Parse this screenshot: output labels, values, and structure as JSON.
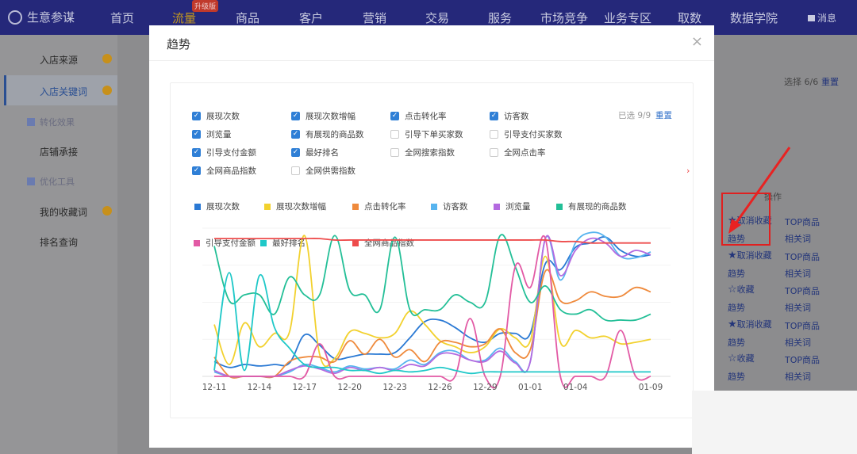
{
  "nav": {
    "brand": "生意参谋",
    "items": [
      "首页",
      "流量",
      "商品",
      "客户",
      "营销",
      "交易",
      "服务",
      "市场竞争",
      "业务专区",
      "取数",
      "数据学院"
    ],
    "active": "流量",
    "badge": "升级版",
    "message": "消息"
  },
  "sidebar": {
    "items": [
      {
        "label": "入店来源",
        "dot": true
      },
      {
        "label": "入店关键词",
        "dot": true,
        "selected": true
      }
    ],
    "group1": "转化效果",
    "item3": "店铺承接",
    "group2": "优化工具",
    "item4": "我的收藏词",
    "item5": "排名查询"
  },
  "right": {
    "select_text": "选择 6/6",
    "reset": "重置",
    "op_header": "操作",
    "rows": [
      {
        "fav": "取消收藏",
        "star": "filled",
        "top": "TOP商品",
        "trend": "趋势",
        "rel": "相关词"
      },
      {
        "fav": "取消收藏",
        "star": "filled",
        "top": "TOP商品",
        "trend": "趋势",
        "rel": "相关词"
      },
      {
        "fav": "收藏",
        "star": "outline",
        "top": "TOP商品",
        "trend": "趋势",
        "rel": "相关词"
      },
      {
        "fav": "取消收藏",
        "star": "filled",
        "top": "TOP商品",
        "trend": "趋势",
        "rel": "相关词"
      },
      {
        "fav": "收藏",
        "star": "outline",
        "top": "TOP商品",
        "trend": "趋势",
        "rel": "相关词"
      }
    ]
  },
  "modal": {
    "title": "趋势",
    "close": "×",
    "selected_count": "已选 9/9",
    "reset": "重置",
    "metrics": [
      {
        "label": "展现次数",
        "checked": true
      },
      {
        "label": "展现次数增幅",
        "checked": true
      },
      {
        "label": "点击转化率",
        "checked": true
      },
      {
        "label": "访客数",
        "checked": true
      },
      {
        "label": "浏览量",
        "checked": true
      },
      {
        "label": "有展现的商品数",
        "checked": true
      },
      {
        "label": "引导下单买家数",
        "checked": false
      },
      {
        "label": "引导支付买家数",
        "checked": false
      },
      {
        "label": "引导支付金额",
        "checked": true
      },
      {
        "label": "最好排名",
        "checked": true
      },
      {
        "label": "全网搜索指数",
        "checked": false
      },
      {
        "label": "全网点击率",
        "checked": false
      },
      {
        "label": "全网商品指数",
        "checked": true
      },
      {
        "label": "全网供需指数",
        "checked": false
      }
    ]
  },
  "chart_data": {
    "type": "line",
    "smooth": true,
    "legend_position": "top",
    "grid": true,
    "ylim": [
      0,
      100
    ],
    "categories": [
      "12-11",
      "12-12",
      "12-13",
      "12-14",
      "12-15",
      "12-16",
      "12-17",
      "12-18",
      "12-19",
      "12-20",
      "12-21",
      "12-22",
      "12-23",
      "12-24",
      "12-25",
      "12-26",
      "12-27",
      "12-28",
      "12-29",
      "12-30",
      "12-31",
      "01-01",
      "01-02",
      "01-03",
      "01-04",
      "01-05",
      "01-06",
      "01-07",
      "01-08",
      "01-09"
    ],
    "tick_labels": [
      "12-11",
      "12-14",
      "12-17",
      "12-20",
      "12-23",
      "12-26",
      "12-29",
      "01-01",
      "01-04",
      "01-09"
    ],
    "series": [
      {
        "name": "展现次数",
        "color": "#2a79d4",
        "values": [
          10,
          6,
          8,
          7,
          8,
          9,
          28,
          21,
          12,
          13,
          15,
          15,
          16,
          26,
          37,
          38,
          33,
          26,
          23,
          29,
          29,
          29,
          76,
          72,
          87,
          90,
          94,
          85,
          81,
          82
        ]
      },
      {
        "name": "展现次数增幅",
        "color": "#f2d12e",
        "values": [
          35,
          8,
          36,
          20,
          29,
          30,
          95,
          15,
          12,
          30,
          29,
          26,
          29,
          44,
          35,
          24,
          20,
          16,
          20,
          32,
          26,
          24,
          81,
          23,
          31,
          26,
          27,
          22,
          23,
          25
        ]
      },
      {
        "name": "点击转化率",
        "color": "#ef8a3c",
        "values": [
          13,
          0,
          0,
          0,
          0,
          10,
          13,
          13,
          10,
          24,
          15,
          25,
          13,
          18,
          10,
          23,
          23,
          20,
          22,
          32,
          16,
          18,
          71,
          51,
          51,
          57,
          54,
          54,
          60,
          57
        ]
      },
      {
        "name": "访客数",
        "color": "#57b4ef",
        "values": [
          3,
          0,
          0,
          0,
          0,
          3,
          8,
          6,
          3,
          7,
          5,
          6,
          5,
          11,
          8,
          16,
          17,
          11,
          11,
          19,
          10,
          10,
          93,
          65,
          90,
          97,
          94,
          81,
          80,
          84
        ]
      },
      {
        "name": "浏览量",
        "color": "#b46ae0",
        "values": [
          4,
          0,
          0,
          0,
          0,
          4,
          7,
          5,
          2,
          6,
          4,
          6,
          4,
          8,
          7,
          15,
          15,
          11,
          10,
          17,
          9,
          10,
          93,
          68,
          85,
          93,
          90,
          81,
          85,
          82
        ]
      },
      {
        "name": "有展现的商品数",
        "color": "#23bf97",
        "values": [
          88,
          51,
          55,
          55,
          42,
          67,
          55,
          55,
          95,
          58,
          55,
          45,
          94,
          45,
          45,
          45,
          55,
          50,
          50,
          95,
          74,
          50,
          61,
          45,
          42,
          45,
          38,
          38,
          38,
          42
        ]
      },
      {
        "name": "引导支付金额",
        "color": "#e25aa5",
        "values": [
          0,
          0,
          0,
          0,
          0,
          0,
          0,
          22,
          0,
          0,
          0,
          0,
          0,
          0,
          0,
          0,
          0,
          39,
          0,
          0,
          74,
          60,
          93,
          0,
          0,
          0,
          0,
          31,
          0,
          0
        ]
      },
      {
        "name": "最好排名",
        "color": "#1fc8c8",
        "values": [
          4,
          70,
          4,
          68,
          33,
          19,
          8,
          6,
          6,
          4,
          4,
          2,
          4,
          3,
          4,
          6,
          4,
          2,
          3,
          3,
          3,
          3,
          3,
          3,
          3,
          3,
          3,
          3,
          3,
          3
        ]
      },
      {
        "name": "全网商品指数",
        "color": "#ee4c4c",
        "values": [
          93,
          93,
          93,
          93,
          93,
          93,
          93,
          93,
          92,
          92,
          92,
          92,
          92,
          92,
          92,
          92,
          92,
          92,
          92,
          92,
          92,
          92,
          92,
          91,
          91,
          90,
          90,
          90,
          90,
          90
        ]
      }
    ]
  }
}
